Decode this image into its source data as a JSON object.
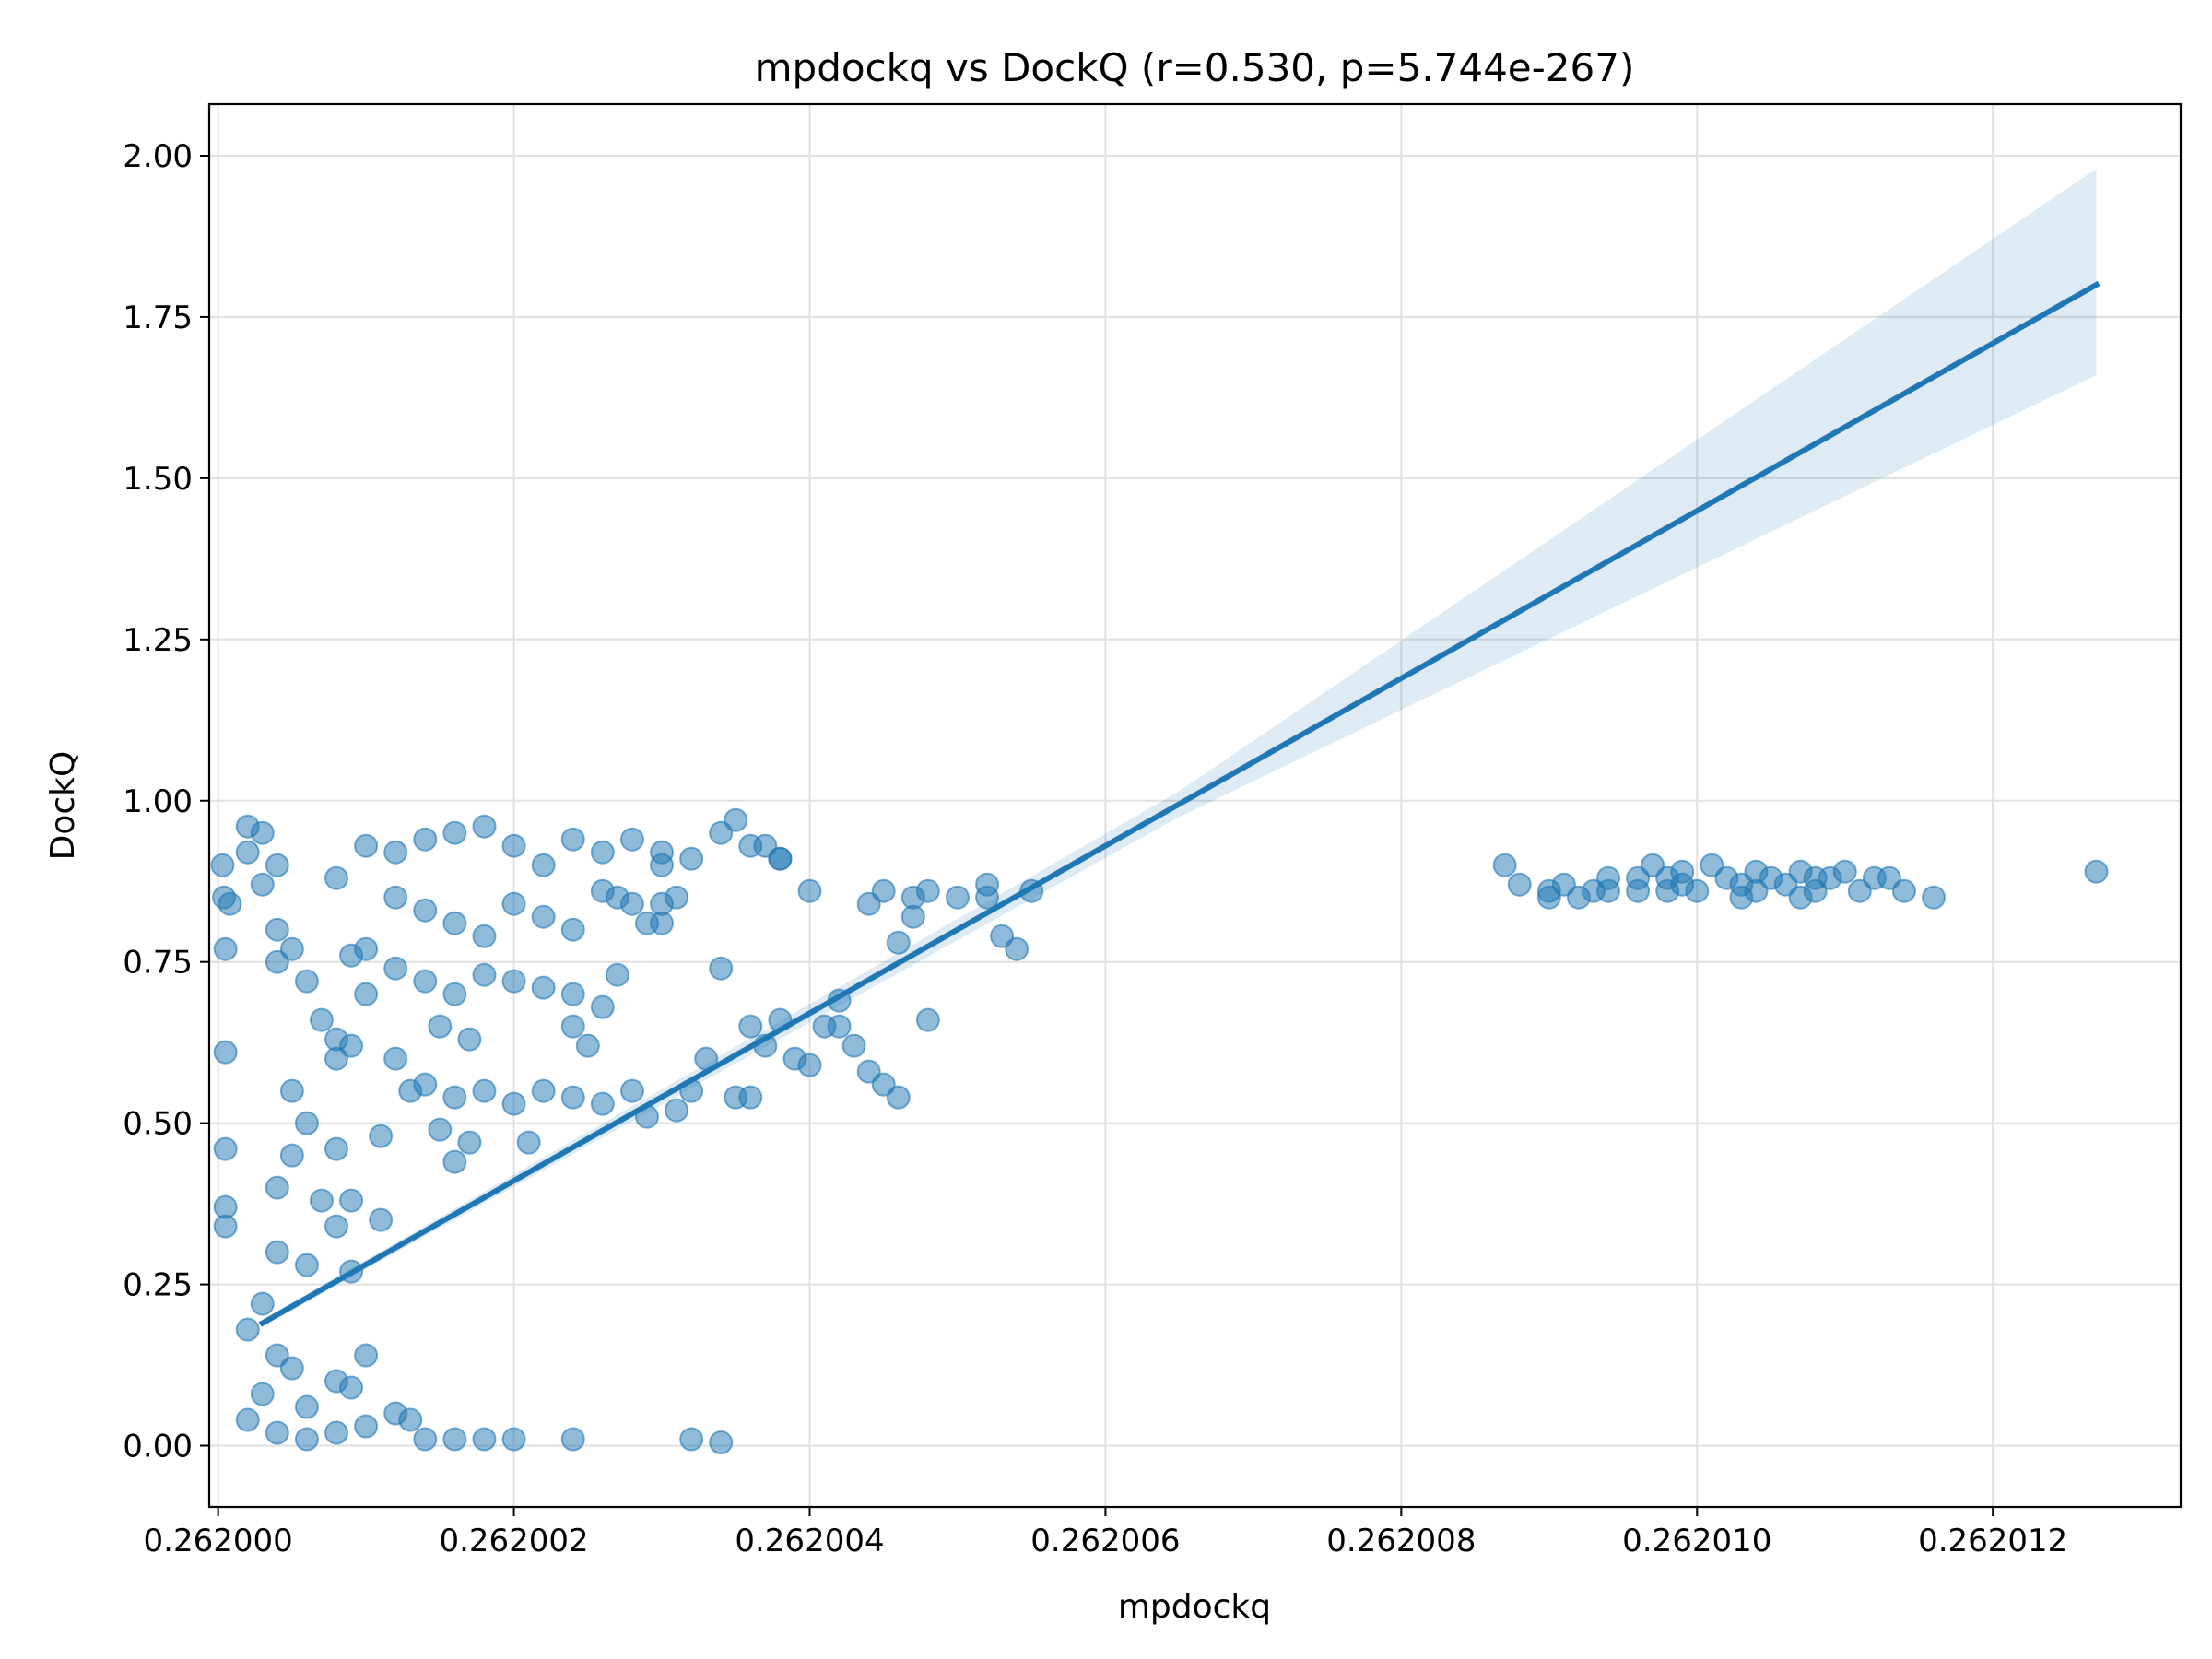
{
  "chart_data": {
    "type": "scatter",
    "title": "mpdockq vs DockQ (r=0.530, p=5.744e-267)",
    "xlabel": "mpdockq",
    "ylabel": "DockQ",
    "xlim": [
      0.26199994,
      0.26201327
    ],
    "ylim": [
      -0.095,
      2.08
    ],
    "x_ticks": [
      0.262,
      0.262002,
      0.262004,
      0.262006,
      0.262008,
      0.26201,
      0.262012
    ],
    "x_tick_labels": [
      "0.262000",
      "0.262002",
      "0.262004",
      "0.262006",
      "0.262008",
      "0.262010",
      "0.262012"
    ],
    "y_ticks": [
      0,
      0.25,
      0.5,
      0.75,
      1.0,
      1.25,
      1.5,
      1.75,
      2.0
    ],
    "y_tick_labels": [
      "0.00",
      "0.25",
      "0.50",
      "0.75",
      "1.00",
      "1.25",
      "1.50",
      "1.75",
      "2.00"
    ],
    "grid": true,
    "colors": {
      "points": "#1f77b4",
      "line": "#1f77b4",
      "band": "#1f77b4"
    },
    "series": [
      {
        "points": [
          [
            0.26200005,
            0.61
          ],
          [
            0.26200005,
            0.46
          ],
          [
            0.26200005,
            0.37
          ],
          [
            0.26200005,
            0.34
          ],
          [
            0.26200005,
            0.77
          ],
          [
            0.26200003,
            0.9
          ],
          [
            0.26200004,
            0.85
          ],
          [
            0.26200008,
            0.84
          ],
          [
            0.2620002,
            0.96
          ],
          [
            0.2620003,
            0.95
          ],
          [
            0.2620002,
            0.92
          ],
          [
            0.2620004,
            0.9
          ],
          [
            0.2620003,
            0.87
          ],
          [
            0.2620004,
            0.8
          ],
          [
            0.2620004,
            0.75
          ],
          [
            0.2620005,
            0.77
          ],
          [
            0.2620006,
            0.72
          ],
          [
            0.2620007,
            0.66
          ],
          [
            0.2620008,
            0.63
          ],
          [
            0.2620008,
            0.6
          ],
          [
            0.2620005,
            0.55
          ],
          [
            0.2620006,
            0.5
          ],
          [
            0.2620005,
            0.45
          ],
          [
            0.2620004,
            0.4
          ],
          [
            0.2620007,
            0.38
          ],
          [
            0.2620008,
            0.34
          ],
          [
            0.2620006,
            0.28
          ],
          [
            0.2620009,
            0.27
          ],
          [
            0.2620008,
            0.46
          ],
          [
            0.2620009,
            0.38
          ],
          [
            0.2620004,
            0.3
          ],
          [
            0.2620003,
            0.22
          ],
          [
            0.2620002,
            0.18
          ],
          [
            0.2620004,
            0.14
          ],
          [
            0.2620005,
            0.12
          ],
          [
            0.2620003,
            0.08
          ],
          [
            0.2620006,
            0.06
          ],
          [
            0.2620008,
            0.1
          ],
          [
            0.262001,
            0.14
          ],
          [
            0.2620009,
            0.09
          ],
          [
            0.2620002,
            0.04
          ],
          [
            0.2620004,
            0.02
          ],
          [
            0.2620006,
            0.01
          ],
          [
            0.2620008,
            0.02
          ],
          [
            0.262001,
            0.03
          ],
          [
            0.2620012,
            0.05
          ],
          [
            0.2620013,
            0.04
          ],
          [
            0.2620014,
            0.01
          ],
          [
            0.2620016,
            0.01
          ],
          [
            0.2620018,
            0.01
          ],
          [
            0.262002,
            0.01
          ],
          [
            0.2620024,
            0.01
          ],
          [
            0.2620032,
            0.01
          ],
          [
            0.2620034,
            0.005
          ],
          [
            0.262001,
            0.93
          ],
          [
            0.2620012,
            0.92
          ],
          [
            0.2620014,
            0.94
          ],
          [
            0.2620016,
            0.95
          ],
          [
            0.2620018,
            0.96
          ],
          [
            0.262002,
            0.93
          ],
          [
            0.2620022,
            0.9
          ],
          [
            0.2620024,
            0.94
          ],
          [
            0.2620026,
            0.92
          ],
          [
            0.2620028,
            0.94
          ],
          [
            0.262003,
            0.92
          ],
          [
            0.2620032,
            0.91
          ],
          [
            0.2620034,
            0.95
          ],
          [
            0.2620035,
            0.97
          ],
          [
            0.2620036,
            0.93
          ],
          [
            0.2620038,
            0.91
          ],
          [
            0.2620012,
            0.85
          ],
          [
            0.2620014,
            0.83
          ],
          [
            0.2620016,
            0.81
          ],
          [
            0.2620018,
            0.79
          ],
          [
            0.262002,
            0.84
          ],
          [
            0.2620022,
            0.82
          ],
          [
            0.2620024,
            0.8
          ],
          [
            0.2620026,
            0.86
          ],
          [
            0.2620028,
            0.84
          ],
          [
            0.262003,
            0.81
          ],
          [
            0.262001,
            0.77
          ],
          [
            0.2620012,
            0.74
          ],
          [
            0.2620014,
            0.72
          ],
          [
            0.2620016,
            0.7
          ],
          [
            0.2620018,
            0.73
          ],
          [
            0.262002,
            0.72
          ],
          [
            0.2620022,
            0.71
          ],
          [
            0.2620024,
            0.7
          ],
          [
            0.2620026,
            0.68
          ],
          [
            0.2620027,
            0.73
          ],
          [
            0.2620015,
            0.65
          ],
          [
            0.2620017,
            0.63
          ],
          [
            0.2620024,
            0.65
          ],
          [
            0.2620025,
            0.62
          ],
          [
            0.2620014,
            0.56
          ],
          [
            0.2620016,
            0.54
          ],
          [
            0.2620018,
            0.55
          ],
          [
            0.262002,
            0.53
          ],
          [
            0.2620022,
            0.55
          ],
          [
            0.2620024,
            0.54
          ],
          [
            0.2620026,
            0.53
          ],
          [
            0.2620028,
            0.55
          ],
          [
            0.2620015,
            0.49
          ],
          [
            0.2620017,
            0.47
          ],
          [
            0.2620016,
            0.44
          ],
          [
            0.2620021,
            0.47
          ],
          [
            0.2620011,
            0.48
          ],
          [
            0.2620013,
            0.55
          ],
          [
            0.2620012,
            0.6
          ],
          [
            0.2620009,
            0.62
          ],
          [
            0.262001,
            0.7
          ],
          [
            0.2620009,
            0.76
          ],
          [
            0.2620008,
            0.88
          ],
          [
            0.2620011,
            0.35
          ],
          [
            0.2620029,
            0.51
          ],
          [
            0.2620031,
            0.52
          ],
          [
            0.2620032,
            0.55
          ],
          [
            0.2620033,
            0.6
          ],
          [
            0.2620035,
            0.54
          ],
          [
            0.2620036,
            0.54
          ],
          [
            0.2620036,
            0.65
          ],
          [
            0.2620037,
            0.62
          ],
          [
            0.2620038,
            0.66
          ],
          [
            0.2620039,
            0.6
          ],
          [
            0.262004,
            0.59
          ],
          [
            0.2620041,
            0.65
          ],
          [
            0.2620042,
            0.69
          ],
          [
            0.2620042,
            0.65
          ],
          [
            0.2620043,
            0.62
          ],
          [
            0.2620044,
            0.58
          ],
          [
            0.2620045,
            0.56
          ],
          [
            0.2620046,
            0.54
          ],
          [
            0.2620046,
            0.78
          ],
          [
            0.2620047,
            0.82
          ],
          [
            0.2620048,
            0.66
          ],
          [
            0.2620044,
            0.84
          ],
          [
            0.2620045,
            0.86
          ],
          [
            0.2620047,
            0.85
          ],
          [
            0.2620048,
            0.86
          ],
          [
            0.262005,
            0.85
          ],
          [
            0.2620052,
            0.87
          ],
          [
            0.2620052,
            0.85
          ],
          [
            0.2620053,
            0.79
          ],
          [
            0.2620054,
            0.77
          ],
          [
            0.2620055,
            0.86
          ],
          [
            0.262004,
            0.86
          ],
          [
            0.2620034,
            0.74
          ],
          [
            0.262003,
            0.84
          ],
          [
            0.2620031,
            0.85
          ],
          [
            0.2620029,
            0.81
          ],
          [
            0.2620027,
            0.85
          ],
          [
            0.262003,
            0.9
          ],
          [
            0.2620038,
            0.91
          ],
          [
            0.2620037,
            0.93
          ],
          [
            0.2620087,
            0.9
          ],
          [
            0.2620088,
            0.87
          ],
          [
            0.262009,
            0.86
          ],
          [
            0.262009,
            0.85
          ],
          [
            0.2620091,
            0.87
          ],
          [
            0.2620092,
            0.85
          ],
          [
            0.2620093,
            0.86
          ],
          [
            0.2620094,
            0.88
          ],
          [
            0.2620094,
            0.86
          ],
          [
            0.2620096,
            0.86
          ],
          [
            0.2620096,
            0.88
          ],
          [
            0.2620097,
            0.9
          ],
          [
            0.2620098,
            0.88
          ],
          [
            0.2620098,
            0.86
          ],
          [
            0.2620099,
            0.89
          ],
          [
            0.2620099,
            0.87
          ],
          [
            0.26201,
            0.86
          ],
          [
            0.2620101,
            0.9
          ],
          [
            0.2620102,
            0.88
          ],
          [
            0.2620103,
            0.87
          ],
          [
            0.2620103,
            0.85
          ],
          [
            0.2620104,
            0.89
          ],
          [
            0.2620104,
            0.86
          ],
          [
            0.2620105,
            0.88
          ],
          [
            0.2620106,
            0.87
          ],
          [
            0.2620107,
            0.89
          ],
          [
            0.2620107,
            0.85
          ],
          [
            0.2620108,
            0.86
          ],
          [
            0.2620108,
            0.88
          ],
          [
            0.2620109,
            0.88
          ],
          [
            0.262011,
            0.89
          ],
          [
            0.2620111,
            0.86
          ],
          [
            0.2620112,
            0.88
          ],
          [
            0.2620113,
            0.88
          ],
          [
            0.2620114,
            0.86
          ],
          [
            0.2620116,
            0.85
          ],
          [
            0.2620127,
            0.89
          ]
        ]
      }
    ],
    "regression": {
      "x_range": [
        0.2620003,
        0.2620127
      ],
      "y_range": [
        0.19,
        1.8
      ],
      "ci_upper_at_end": 1.98,
      "ci_lower_at_end": 1.66
    }
  }
}
